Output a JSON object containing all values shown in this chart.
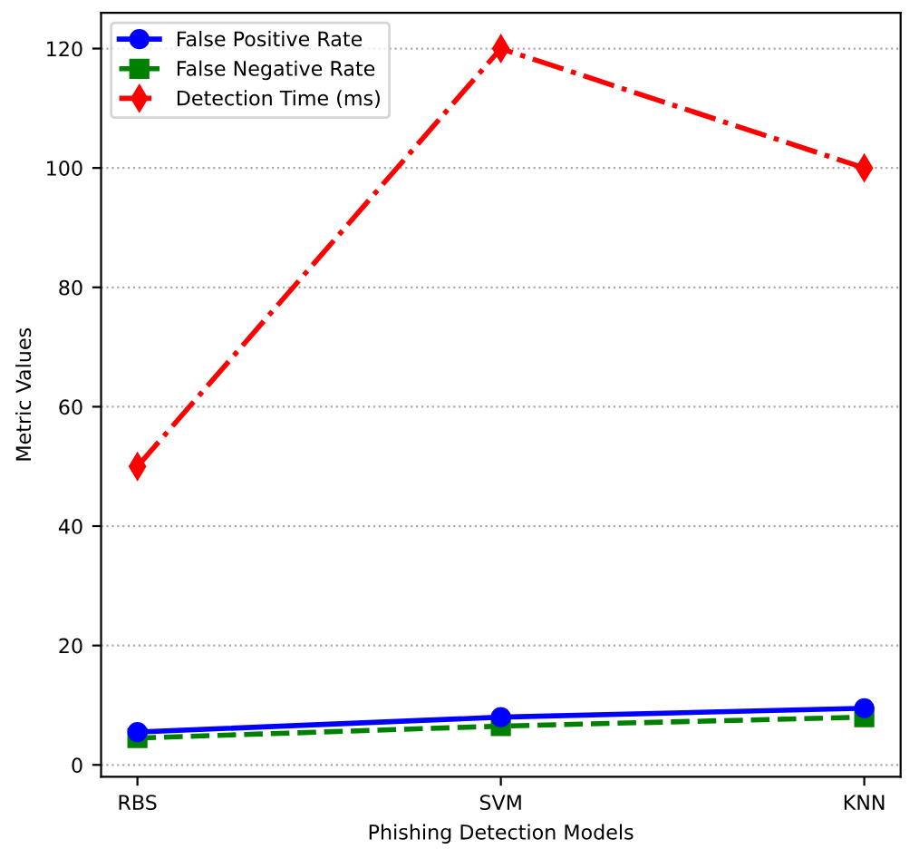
{
  "chart_data": {
    "type": "line",
    "xlabel": "Phishing Detection Models",
    "ylabel": "Metric Values",
    "categories": [
      "RBS",
      "SVM",
      "KNN"
    ],
    "series": [
      {
        "name": "False Positive Rate",
        "color": "#0000ff",
        "values": [
          5.5,
          8,
          9.5
        ],
        "marker": "circle",
        "line_style": "solid"
      },
      {
        "name": "False Negative Rate",
        "color": "#008000",
        "values": [
          4.5,
          6.5,
          8
        ],
        "marker": "square",
        "line_style": "dashed"
      },
      {
        "name": "Detection Time (ms)",
        "color": "#ff0000",
        "values": [
          50,
          120,
          100
        ],
        "marker": "diamond",
        "line_style": "dashdot"
      }
    ],
    "ylim": [
      -2,
      126
    ],
    "yticks": [
      0,
      20,
      40,
      60,
      80,
      100,
      120
    ],
    "grid": "y",
    "legend": "top left"
  }
}
